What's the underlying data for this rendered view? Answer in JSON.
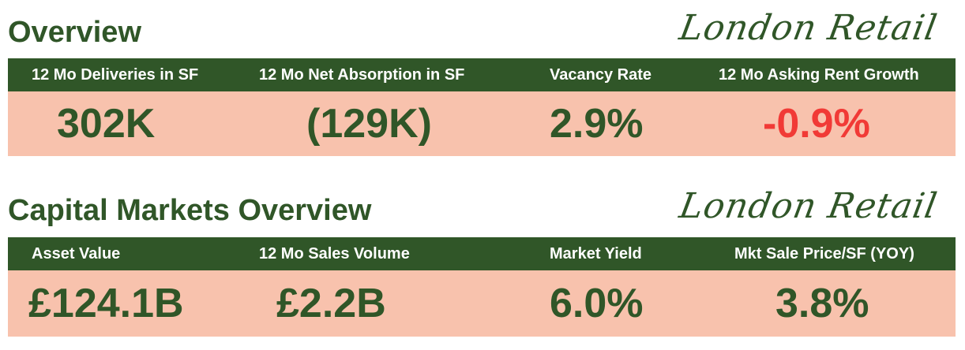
{
  "overview": {
    "title": "Overview",
    "brand": "London Retail",
    "metrics": [
      {
        "label": "12 Mo Deliveries in SF",
        "value": "302K"
      },
      {
        "label": "12 Mo Net Absorption in SF",
        "value": "(129K)"
      },
      {
        "label": "Vacancy Rate",
        "value": "2.9%"
      },
      {
        "label": "12 Mo Asking Rent Growth",
        "value": "-0.9%"
      }
    ]
  },
  "capital": {
    "title": "Capital Markets Overview",
    "brand": "London Retail",
    "metrics": [
      {
        "label": "Asset Value",
        "value": "£124.1B"
      },
      {
        "label": "12 Mo Sales Volume",
        "value": "£2.2B"
      },
      {
        "label": "Market Yield",
        "value": "6.0%"
      },
      {
        "label": "Mkt Sale Price/SF (YOY)",
        "value": "3.8%"
      }
    ]
  },
  "colors": {
    "brand_green": "#305628",
    "value_band": "#f8c2ad",
    "negative_red": "#f13a36",
    "header_text": "#ffffff"
  }
}
